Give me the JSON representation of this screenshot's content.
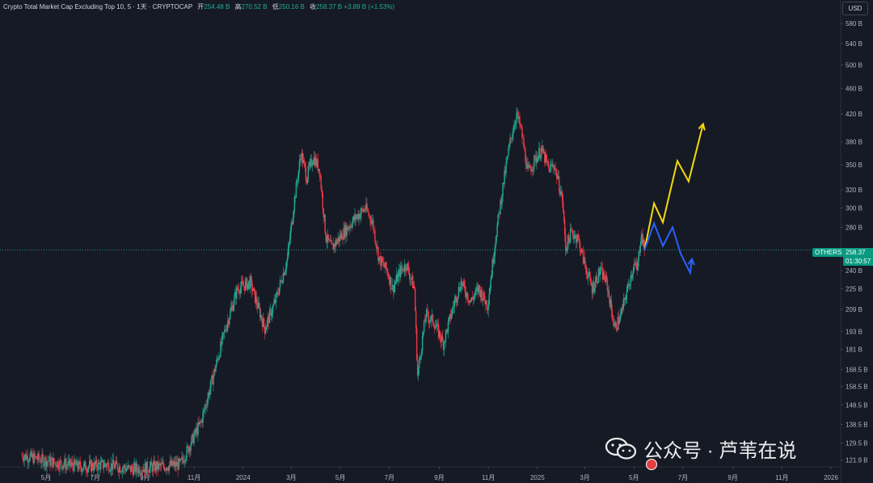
{
  "header": {
    "title": "Crypto Total Market Cap Excluding Top 10, 5 · 1天 · CRYPTOCAP",
    "open_label": "开",
    "open_value": "254.48 B",
    "high_label": "高",
    "high_value": "270.52 B",
    "low_label": "低",
    "low_value": "250.16 B",
    "close_label": "收",
    "close_value": "258.37 B",
    "change": "+3.89 B (+1.53%)"
  },
  "currency_button": "USD",
  "price_tag": {
    "symbol": "OTHERS",
    "price": "258.37 B",
    "countdown": "01:30:57"
  },
  "watermark": {
    "text": "公众号 · 芦苇在说"
  },
  "colors": {
    "background": "#161a25",
    "up": "#22ab94",
    "down": "#f23645",
    "forecast_up": "#f5d90a",
    "forecast_down": "#2962ff",
    "grid": "#1e222d",
    "axis_text": "#b2b5be"
  },
  "chart_data": {
    "type": "candlestick",
    "y_scale": "log",
    "ylim": [
      119,
      620
    ],
    "y_ticks": [
      "580 B",
      "540 B",
      "500 B",
      "460 B",
      "420 B",
      "380 B",
      "350 B",
      "320 B",
      "300 B",
      "280 B",
      "240 B",
      "225 B",
      "209 B",
      "193 B",
      "181 B",
      "168.5 B",
      "158.5 B",
      "148.5 B",
      "138.5 B",
      "129.5 B",
      "121.9 B"
    ],
    "x_ticks": [
      "5月",
      "7月",
      "9月",
      "11月",
      "2024",
      "3月",
      "5月",
      "7月",
      "9月",
      "11月",
      "2025",
      "3月",
      "5月",
      "7月",
      "9月",
      "11月",
      "2026"
    ],
    "last_price": 258.37,
    "price_path": [
      [
        "2023-04-01",
        124
      ],
      [
        "2023-05-10",
        121
      ],
      [
        "2023-06-15",
        119
      ],
      [
        "2023-07-15",
        120
      ],
      [
        "2023-08-15",
        118
      ],
      [
        "2023-10-15",
        120
      ],
      [
        "2023-11-10",
        140
      ],
      [
        "2023-11-25",
        165
      ],
      [
        "2023-12-10",
        195
      ],
      [
        "2023-12-25",
        225
      ],
      [
        "2024-01-10",
        230
      ],
      [
        "2024-01-20",
        210
      ],
      [
        "2024-01-28",
        195
      ],
      [
        "2024-02-10",
        215
      ],
      [
        "2024-02-25",
        250
      ],
      [
        "2024-03-05",
        310
      ],
      [
        "2024-03-13",
        365
      ],
      [
        "2024-03-20",
        335
      ],
      [
        "2024-03-28",
        360
      ],
      [
        "2024-04-05",
        345
      ],
      [
        "2024-04-13",
        270
      ],
      [
        "2024-04-20",
        260
      ],
      [
        "2024-05-05",
        275
      ],
      [
        "2024-05-20",
        290
      ],
      [
        "2024-06-01",
        300
      ],
      [
        "2024-06-10",
        285
      ],
      [
        "2024-06-18",
        250
      ],
      [
        "2024-06-28",
        240
      ],
      [
        "2024-07-05",
        225
      ],
      [
        "2024-07-15",
        240
      ],
      [
        "2024-07-22",
        245
      ],
      [
        "2024-08-01",
        225
      ],
      [
        "2024-08-05",
        165
      ],
      [
        "2024-08-15",
        205
      ],
      [
        "2024-08-25",
        200
      ],
      [
        "2024-09-06",
        185
      ],
      [
        "2024-09-20",
        215
      ],
      [
        "2024-09-28",
        230
      ],
      [
        "2024-10-10",
        215
      ],
      [
        "2024-10-20",
        225
      ],
      [
        "2024-10-31",
        212
      ],
      [
        "2024-11-10",
        270
      ],
      [
        "2024-11-20",
        330
      ],
      [
        "2024-11-28",
        380
      ],
      [
        "2024-12-06",
        420
      ],
      [
        "2024-12-12",
        395
      ],
      [
        "2024-12-20",
        340
      ],
      [
        "2024-12-28",
        355
      ],
      [
        "2025-01-06",
        370
      ],
      [
        "2025-01-15",
        345
      ],
      [
        "2025-01-22",
        350
      ],
      [
        "2025-02-01",
        310
      ],
      [
        "2025-02-05",
        260
      ],
      [
        "2025-02-12",
        275
      ],
      [
        "2025-02-20",
        270
      ],
      [
        "2025-03-01",
        245
      ],
      [
        "2025-03-10",
        225
      ],
      [
        "2025-03-20",
        240
      ],
      [
        "2025-03-28",
        230
      ],
      [
        "2025-04-07",
        195
      ],
      [
        "2025-04-15",
        205
      ],
      [
        "2025-04-25",
        230
      ],
      [
        "2025-05-01",
        245
      ],
      [
        "2025-05-05",
        240
      ],
      [
        "2025-05-10",
        275
      ],
      [
        "2025-05-14",
        258.37
      ]
    ],
    "forecast_paths": [
      {
        "color": "forecast_up",
        "points": [
          [
            "2025-05-14",
            258
          ],
          [
            "2025-05-26",
            305
          ],
          [
            "2025-06-06",
            285
          ],
          [
            "2025-06-24",
            355
          ],
          [
            "2025-07-08",
            330
          ],
          [
            "2025-07-26",
            405
          ]
        ]
      },
      {
        "color": "forecast_down",
        "points": [
          [
            "2025-05-14",
            258
          ],
          [
            "2025-05-26",
            284
          ],
          [
            "2025-06-06",
            262
          ],
          [
            "2025-06-18",
            280
          ],
          [
            "2025-06-28",
            255
          ],
          [
            "2025-07-10",
            238
          ],
          [
            "2025-07-12",
            250
          ]
        ]
      }
    ]
  }
}
